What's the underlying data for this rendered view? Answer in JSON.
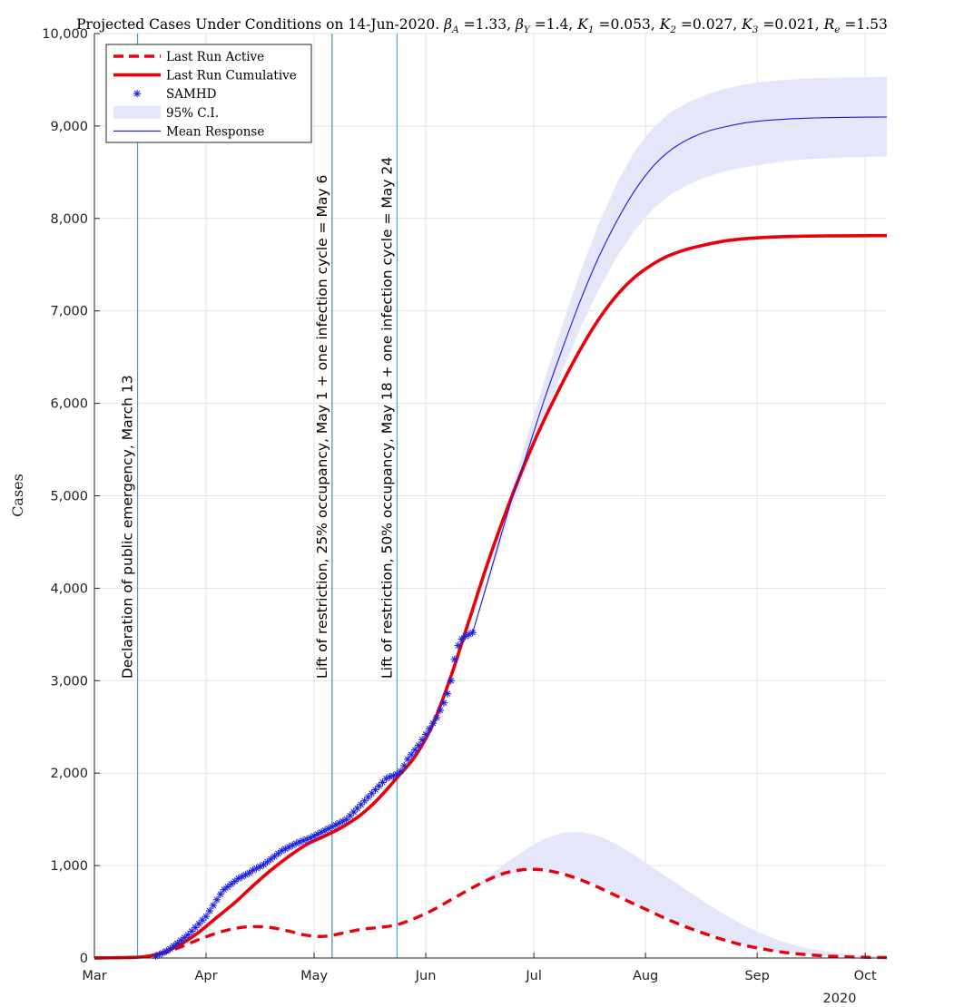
{
  "chart_data": {
    "type": "line",
    "title": "Projected Cases Under Conditions on 14-Jun-2020. βA =1.33, βY =1.4, K1 =0.053, K2 =0.027, K3 =0.021, Re =1.53",
    "title_parts": {
      "prefix": "Projected Cases Under Conditions on 14-Jun-2020. ",
      "params": [
        {
          "sym": "β",
          "sub": "A",
          "val": "=1.33"
        },
        {
          "sym": "β",
          "sub": "Y",
          "val": "=1.4"
        },
        {
          "sym": "K",
          "sub": "1",
          "val": "=0.053"
        },
        {
          "sym": "K",
          "sub": "2",
          "val": "=0.027"
        },
        {
          "sym": "K",
          "sub": "3",
          "val": "=0.021"
        },
        {
          "sym": "R",
          "sub": "e",
          "val": "=1.53"
        }
      ]
    },
    "ylabel": "Cases",
    "xlabel": "",
    "ylim": [
      0,
      10000
    ],
    "xlim": [
      "2020-03-01",
      "2020-10-07"
    ],
    "y_ticks": [
      0,
      1000,
      2000,
      3000,
      4000,
      5000,
      6000,
      7000,
      8000,
      9000,
      10000
    ],
    "y_tick_labels": [
      "0",
      "1,000",
      "2,000",
      "3,000",
      "4,000",
      "5,000",
      "6,000",
      "7,000",
      "8,000",
      "9,000",
      "10,000"
    ],
    "x_ticks": [
      "2020-03-01",
      "2020-04-01",
      "2020-05-01",
      "2020-06-01",
      "2020-07-01",
      "2020-08-01",
      "2020-09-01",
      "2020-10-01"
    ],
    "x_tick_labels": [
      "Mar",
      "Apr",
      "May",
      "Jun",
      "Jul",
      "Aug",
      "Sep",
      "Oct"
    ],
    "x_secondary_label": "2020",
    "grid": true,
    "legend_position": "top-left",
    "legend": [
      {
        "label": "Last Run Active",
        "style": "dashed",
        "color": "#e8000b"
      },
      {
        "label": "Last Run Cumulative",
        "style": "solid-thick",
        "color": "#e8000b"
      },
      {
        "label": "SAMHD",
        "style": "marker-asterisk",
        "color": "#1f23e0"
      },
      {
        "label": "95% C.I.",
        "style": "band",
        "color": "#e6e6fa"
      },
      {
        "label": "Mean Response",
        "style": "solid-thin",
        "color": "#1a1ad6"
      }
    ],
    "vlines": [
      {
        "x": "2020-03-13",
        "label": "Declaration of public emergency, March 13",
        "color": "#2e8fc9"
      },
      {
        "x": "2020-05-06",
        "label": "Lift of restriction, 25% occupancy, May 1 + one infection cycle = May 6",
        "color": "#1b7f7f"
      },
      {
        "x": "2020-05-24",
        "label": "Lift of restriction, 50% occupancy, May 18 + one infection cycle = May 24",
        "color": "#2e8fc9"
      }
    ],
    "series": [
      {
        "name": "Last Run Cumulative",
        "x": [
          "2020-03-01",
          "2020-03-10",
          "2020-03-15",
          "2020-03-20",
          "2020-03-25",
          "2020-03-30",
          "2020-04-04",
          "2020-04-09",
          "2020-04-14",
          "2020-04-19",
          "2020-04-24",
          "2020-04-29",
          "2020-05-04",
          "2020-05-09",
          "2020-05-14",
          "2020-05-19",
          "2020-05-24",
          "2020-05-29",
          "2020-06-03",
          "2020-06-08",
          "2020-06-13",
          "2020-06-18",
          "2020-06-23",
          "2020-06-28",
          "2020-07-03",
          "2020-07-08",
          "2020-07-13",
          "2020-07-18",
          "2020-07-23",
          "2020-07-28",
          "2020-08-02",
          "2020-08-07",
          "2020-08-12",
          "2020-08-17",
          "2020-08-22",
          "2020-08-27",
          "2020-09-01",
          "2020-09-06",
          "2020-09-11",
          "2020-09-16",
          "2020-09-21",
          "2020-09-26",
          "2020-10-01",
          "2020-10-07"
        ],
        "y": [
          0,
          5,
          15,
          60,
          150,
          280,
          440,
          600,
          780,
          950,
          1100,
          1230,
          1320,
          1420,
          1550,
          1730,
          1950,
          2180,
          2530,
          3050,
          3650,
          4250,
          4800,
          5300,
          5750,
          6150,
          6520,
          6850,
          7120,
          7330,
          7480,
          7590,
          7660,
          7710,
          7750,
          7775,
          7790,
          7800,
          7806,
          7810,
          7812,
          7813,
          7814,
          7815
        ]
      },
      {
        "name": "Last Run Active",
        "x": [
          "2020-03-01",
          "2020-03-10",
          "2020-03-15",
          "2020-03-20",
          "2020-03-25",
          "2020-03-30",
          "2020-04-04",
          "2020-04-09",
          "2020-04-14",
          "2020-04-19",
          "2020-04-24",
          "2020-04-29",
          "2020-05-04",
          "2020-05-09",
          "2020-05-14",
          "2020-05-19",
          "2020-05-24",
          "2020-05-29",
          "2020-06-03",
          "2020-06-08",
          "2020-06-13",
          "2020-06-18",
          "2020-06-23",
          "2020-06-28",
          "2020-07-03",
          "2020-07-08",
          "2020-07-13",
          "2020-07-18",
          "2020-07-23",
          "2020-07-28",
          "2020-08-02",
          "2020-08-07",
          "2020-08-12",
          "2020-08-17",
          "2020-08-22",
          "2020-08-27",
          "2020-09-01",
          "2020-09-06",
          "2020-09-11",
          "2020-09-16",
          "2020-09-21",
          "2020-09-26",
          "2020-10-01",
          "2020-10-07"
        ],
        "y": [
          0,
          5,
          15,
          50,
          120,
          200,
          270,
          320,
          340,
          330,
          290,
          245,
          235,
          270,
          310,
          330,
          360,
          430,
          520,
          630,
          740,
          840,
          920,
          955,
          955,
          920,
          860,
          780,
          690,
          600,
          510,
          420,
          340,
          270,
          205,
          150,
          110,
          75,
          50,
          32,
          20,
          13,
          8,
          5
        ]
      },
      {
        "name": "Mean Response",
        "x": [
          "2020-06-14",
          "2020-06-19",
          "2020-06-24",
          "2020-06-29",
          "2020-07-04",
          "2020-07-09",
          "2020-07-14",
          "2020-07-19",
          "2020-07-24",
          "2020-07-29",
          "2020-08-03",
          "2020-08-08",
          "2020-08-13",
          "2020-08-18",
          "2020-08-23",
          "2020-08-28",
          "2020-09-02",
          "2020-09-07",
          "2020-09-12",
          "2020-09-17",
          "2020-09-22",
          "2020-09-27",
          "2020-10-02",
          "2020-10-07"
        ],
        "y": [
          3520,
          4180,
          4850,
          5450,
          6050,
          6600,
          7120,
          7580,
          7970,
          8300,
          8560,
          8740,
          8860,
          8940,
          8990,
          9030,
          9055,
          9070,
          9080,
          9087,
          9091,
          9094,
          9096,
          9097
        ]
      },
      {
        "name": "95% C.I. (cumulative)",
        "x": [
          "2020-06-14",
          "2020-06-19",
          "2020-06-24",
          "2020-06-29",
          "2020-07-04",
          "2020-07-09",
          "2020-07-14",
          "2020-07-19",
          "2020-07-24",
          "2020-07-29",
          "2020-08-03",
          "2020-08-08",
          "2020-08-13",
          "2020-08-18",
          "2020-08-23",
          "2020-08-28",
          "2020-09-02",
          "2020-09-07",
          "2020-09-12",
          "2020-09-17",
          "2020-09-22",
          "2020-09-27",
          "2020-10-02",
          "2020-10-07"
        ],
        "lower": [
          3520,
          4130,
          4750,
          5300,
          5850,
          6360,
          6820,
          7230,
          7580,
          7870,
          8100,
          8260,
          8370,
          8450,
          8510,
          8550,
          8580,
          8610,
          8630,
          8645,
          8655,
          8662,
          8665,
          8667
        ],
        "upper": [
          3520,
          4230,
          4960,
          5620,
          6260,
          6860,
          7430,
          7940,
          8380,
          8730,
          8980,
          9150,
          9260,
          9340,
          9400,
          9445,
          9475,
          9495,
          9508,
          9517,
          9522,
          9526,
          9528,
          9530
        ]
      },
      {
        "name": "95% C.I. (active)",
        "x": [
          "2020-06-14",
          "2020-06-19",
          "2020-06-24",
          "2020-06-29",
          "2020-07-04",
          "2020-07-09",
          "2020-07-14",
          "2020-07-19",
          "2020-07-24",
          "2020-07-29",
          "2020-08-03",
          "2020-08-08",
          "2020-08-13",
          "2020-08-18",
          "2020-08-23",
          "2020-08-28",
          "2020-09-02",
          "2020-09-07",
          "2020-09-12",
          "2020-09-17",
          "2020-09-22",
          "2020-09-27",
          "2020-10-02",
          "2020-10-07"
        ],
        "lower": [
          760,
          830,
          900,
          950,
          955,
          920,
          860,
          780,
          690,
          600,
          510,
          420,
          340,
          270,
          205,
          150,
          110,
          75,
          50,
          32,
          20,
          13,
          8,
          5
        ],
        "upper": [
          760,
          900,
          1050,
          1180,
          1290,
          1355,
          1365,
          1320,
          1230,
          1110,
          980,
          850,
          720,
          590,
          470,
          360,
          270,
          190,
          130,
          90,
          60,
          40,
          25,
          15
        ]
      },
      {
        "name": "SAMHD",
        "x": [
          "2020-03-18",
          "2020-03-19",
          "2020-03-20",
          "2020-03-21",
          "2020-03-22",
          "2020-03-23",
          "2020-03-24",
          "2020-03-25",
          "2020-03-26",
          "2020-03-27",
          "2020-03-28",
          "2020-03-29",
          "2020-03-30",
          "2020-03-31",
          "2020-04-01",
          "2020-04-02",
          "2020-04-03",
          "2020-04-04",
          "2020-04-05",
          "2020-04-06",
          "2020-04-07",
          "2020-04-08",
          "2020-04-09",
          "2020-04-10",
          "2020-04-11",
          "2020-04-12",
          "2020-04-13",
          "2020-04-14",
          "2020-04-15",
          "2020-04-16",
          "2020-04-17",
          "2020-04-18",
          "2020-04-19",
          "2020-04-20",
          "2020-04-21",
          "2020-04-22",
          "2020-04-23",
          "2020-04-24",
          "2020-04-25",
          "2020-04-26",
          "2020-04-27",
          "2020-04-28",
          "2020-04-29",
          "2020-04-30",
          "2020-05-01",
          "2020-05-02",
          "2020-05-03",
          "2020-05-04",
          "2020-05-05",
          "2020-05-06",
          "2020-05-07",
          "2020-05-08",
          "2020-05-09",
          "2020-05-10",
          "2020-05-11",
          "2020-05-12",
          "2020-05-13",
          "2020-05-14",
          "2020-05-15",
          "2020-05-16",
          "2020-05-17",
          "2020-05-18",
          "2020-05-19",
          "2020-05-20",
          "2020-05-21",
          "2020-05-22",
          "2020-05-23",
          "2020-05-24",
          "2020-05-25",
          "2020-05-26",
          "2020-05-27",
          "2020-05-28",
          "2020-05-29",
          "2020-05-30",
          "2020-05-31",
          "2020-06-01",
          "2020-06-02",
          "2020-06-03",
          "2020-06-04",
          "2020-06-05",
          "2020-06-06",
          "2020-06-07",
          "2020-06-08",
          "2020-06-09",
          "2020-06-10",
          "2020-06-11",
          "2020-06-12",
          "2020-06-13",
          "2020-06-14"
        ],
        "y": [
          20,
          35,
          55,
          75,
          100,
          130,
          160,
          190,
          220,
          250,
          290,
          330,
          370,
          410,
          450,
          510,
          570,
          630,
          690,
          740,
          770,
          800,
          830,
          860,
          880,
          900,
          920,
          950,
          970,
          990,
          1010,
          1040,
          1070,
          1100,
          1130,
          1160,
          1180,
          1200,
          1220,
          1240,
          1255,
          1270,
          1285,
          1300,
          1320,
          1340,
          1360,
          1380,
          1400,
          1420,
          1440,
          1460,
          1480,
          1500,
          1540,
          1580,
          1620,
          1660,
          1700,
          1740,
          1780,
          1820,
          1860,
          1900,
          1940,
          1960,
          1970,
          1990,
          2020,
          2080,
          2150,
          2200,
          2250,
          2300,
          2360,
          2420,
          2480,
          2540,
          2600,
          2680,
          2760,
          2860,
          3000,
          3230,
          3380,
          3450,
          3480,
          3500,
          3520
        ]
      }
    ]
  },
  "colors": {
    "red": "#e8000b",
    "blue_marker": "#1f23e0",
    "blue_line": "#1a1ad6",
    "band": "#e6e6fa",
    "grid": "#e3e3e3",
    "vline_1": "#2e8fc9",
    "vline_2": "#1b7f7f",
    "vline_3": "#2e8fc9"
  }
}
